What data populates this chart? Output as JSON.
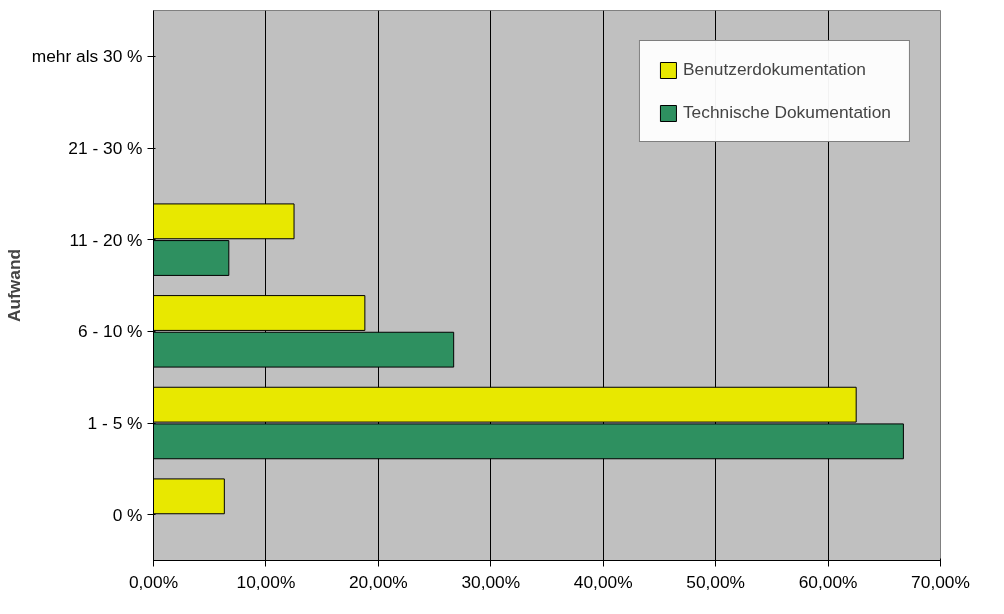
{
  "chart_data": {
    "type": "bar",
    "orientation": "horizontal",
    "ylabel": "Aufwand",
    "categories": [
      "mehr als 30 %",
      "21 - 30 %",
      "11 - 20 %",
      "6 - 10 %",
      "1 - 5 %",
      "0 %"
    ],
    "series": [
      {
        "name": "Benutzerdokumentation",
        "color": "#e8e800",
        "values": [
          null,
          null,
          12.5,
          18.8,
          62.5,
          6.3
        ]
      },
      {
        "name": "Technische Dokumentation",
        "color": "#2e9060",
        "values": [
          null,
          null,
          6.7,
          26.7,
          66.7,
          null
        ]
      }
    ],
    "xlim": [
      0,
      70
    ],
    "xticks": [
      {
        "value": 0,
        "label": "0,00%"
      },
      {
        "value": 10,
        "label": "10,00%"
      },
      {
        "value": 20,
        "label": "20,00%"
      },
      {
        "value": 30,
        "label": "30,00%"
      },
      {
        "value": 40,
        "label": "40,00%"
      },
      {
        "value": 50,
        "label": "50,00%"
      },
      {
        "value": 60,
        "label": "60,00%"
      },
      {
        "value": 70,
        "label": "70,00%"
      }
    ],
    "grid": "x",
    "legend": "top right"
  }
}
